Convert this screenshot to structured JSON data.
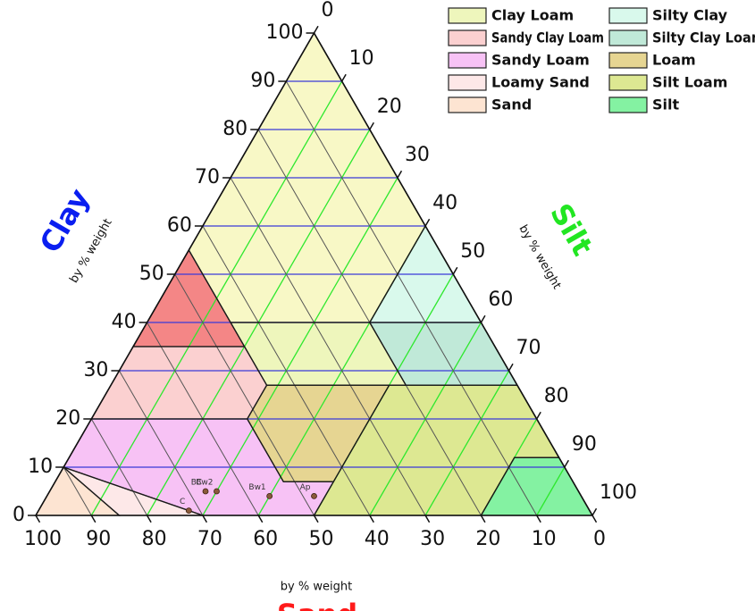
{
  "chart_data": {
    "type": "ternary",
    "axes": {
      "clay": {
        "label": "Clay",
        "sublabel": "by % weight",
        "color": "#0a1ef0",
        "ticks": [
          0,
          10,
          20,
          30,
          40,
          50,
          60,
          70,
          80,
          90,
          100
        ]
      },
      "silt": {
        "label": "Silt",
        "sublabel": "by % weight",
        "color": "#22e622",
        "ticks": [
          0,
          10,
          20,
          30,
          40,
          50,
          60,
          70,
          80,
          90,
          100
        ]
      },
      "sand": {
        "label": "Sand",
        "sublabel": "by % weight",
        "color": "#ff1a1a",
        "ticks": [
          0,
          10,
          20,
          30,
          40,
          50,
          60,
          70,
          80,
          90,
          100
        ]
      }
    },
    "grid": true,
    "regions": [
      {
        "color": "#f8f8c6",
        "vertices": [
          [
            0,
            100
          ],
          [
            0,
            60
          ],
          [
            20,
            40
          ],
          [
            45,
            40
          ],
          [
            45,
            55
          ]
        ]
      },
      {
        "color": "#f48686",
        "vertices": [
          [
            45,
            55
          ],
          [
            65,
            35
          ],
          [
            45,
            35
          ]
        ]
      },
      {
        "name": "Silty Clay",
        "color": "#d9f9ec",
        "vertices": [
          [
            0,
            60
          ],
          [
            0,
            40
          ],
          [
            20,
            40
          ]
        ]
      },
      {
        "name": "Silty Clay Loam",
        "color": "#c0e9d8",
        "vertices": [
          [
            0,
            40
          ],
          [
            0,
            27
          ],
          [
            20,
            27
          ],
          [
            20,
            40
          ]
        ]
      },
      {
        "name": "Clay Loam",
        "color": "#eef6bc",
        "vertices": [
          [
            20,
            40
          ],
          [
            20,
            27
          ],
          [
            45,
            27
          ],
          [
            45,
            40
          ]
        ]
      },
      {
        "name": "Sandy Clay Loam",
        "color": "#fbd0d0",
        "vertices": [
          [
            45,
            35
          ],
          [
            65,
            35
          ],
          [
            80,
            20
          ],
          [
            52,
            20
          ],
          [
            45,
            27
          ]
        ]
      },
      {
        "name": "Loam",
        "color": "#e6d592",
        "vertices": [
          [
            45,
            27
          ],
          [
            52,
            20
          ],
          [
            52,
            7
          ],
          [
            43,
            7
          ],
          [
            23,
            27
          ]
        ]
      },
      {
        "name": "Silt Loam",
        "color": "#dde892",
        "vertices": [
          [
            0,
            27
          ],
          [
            23,
            27
          ],
          [
            43,
            7
          ],
          [
            50,
            0
          ],
          [
            20,
            0
          ],
          [
            8,
            12
          ],
          [
            0,
            12
          ]
        ]
      },
      {
        "name": "Silt",
        "color": "#84f2a2",
        "vertices": [
          [
            0,
            12
          ],
          [
            8,
            12
          ],
          [
            20,
            0
          ],
          [
            0,
            0
          ]
        ]
      },
      {
        "name": "Sandy Loam",
        "color": "#f7c2f5",
        "vertices": [
          [
            52,
            20
          ],
          [
            80,
            20
          ],
          [
            90,
            10
          ],
          [
            70,
            0
          ],
          [
            50,
            0
          ],
          [
            43,
            7
          ],
          [
            52,
            7
          ]
        ]
      },
      {
        "name": "Loamy Sand",
        "color": "#fde8e8",
        "vertices": [
          [
            90,
            10
          ],
          [
            70,
            0
          ],
          [
            85,
            0
          ]
        ]
      },
      {
        "name": "Sand",
        "color": "#fde4d2",
        "vertices": [
          [
            90,
            10
          ],
          [
            85,
            0
          ],
          [
            100,
            0
          ]
        ]
      }
    ],
    "legend_columns": [
      [
        4,
        5,
        9,
        10,
        11
      ],
      [
        2,
        3,
        6,
        7,
        8
      ]
    ],
    "points": [
      {
        "label": "BC",
        "sand": 67,
        "clay": 5
      },
      {
        "label": "Bw2",
        "sand": 65,
        "clay": 5
      },
      {
        "label": "Bw1",
        "sand": 56,
        "clay": 4
      },
      {
        "label": "Ap",
        "sand": 48,
        "clay": 4
      },
      {
        "label": "C",
        "sand": 72,
        "clay": 1
      }
    ],
    "point_color": "#8a5a3a"
  }
}
